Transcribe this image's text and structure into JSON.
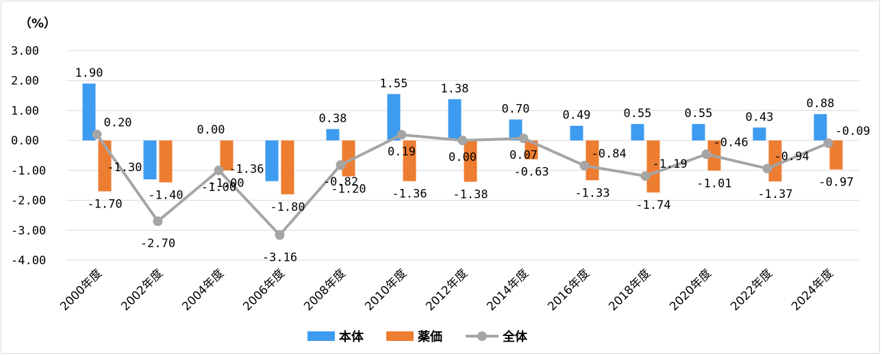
{
  "chart_data": {
    "type": "bar",
    "unit_label": "（%）",
    "categories": [
      "2000年度",
      "2002年度",
      "2004年度",
      "2006年度",
      "2008年度",
      "2010年度",
      "2012年度",
      "2014年度",
      "2016年度",
      "2018年度",
      "2020年度",
      "2022年度",
      "2024年度"
    ],
    "ylim": [
      -4,
      3
    ],
    "yticks": [
      "3.00",
      "2.00",
      "1.00",
      "0.00",
      "-1.00",
      "-2.00",
      "-3.00",
      "-4.00"
    ],
    "grid": true,
    "legend_position": "bottom",
    "series": [
      {
        "name": "本体",
        "kind": "bar",
        "color": "#3d9bf0",
        "values": [
          1.9,
          -1.3,
          0.0,
          -1.36,
          0.38,
          1.55,
          1.38,
          0.7,
          0.49,
          0.55,
          0.55,
          0.43,
          0.88
        ],
        "labels": [
          "1.90",
          "-1.30",
          "0.00",
          "-1.36",
          "0.38",
          "1.55",
          "1.38",
          "0.70",
          "0.49",
          "0.55",
          "0.55",
          "0.43",
          "0.88"
        ]
      },
      {
        "name": "薬価",
        "kind": "bar",
        "color": "#ed7d31",
        "values": [
          -1.7,
          -1.4,
          -1.0,
          -1.8,
          -1.2,
          -1.36,
          -1.38,
          -0.63,
          -1.33,
          -1.74,
          -1.01,
          -1.37,
          -0.97
        ],
        "labels": [
          "-1.70",
          "-1.40",
          "-1.00",
          "-1.80",
          "-1.20",
          "-1.36",
          "-1.38",
          "-0.63",
          "-1.33",
          "-1.74",
          "-1.01",
          "-1.37",
          "-0.97"
        ]
      },
      {
        "name": "全体",
        "kind": "line",
        "color": "#a5a5a5",
        "values": [
          0.2,
          -2.7,
          -1.0,
          -3.16,
          -0.82,
          0.19,
          0.0,
          0.07,
          -0.84,
          -1.19,
          -0.46,
          -0.94,
          -0.09
        ],
        "labels": [
          "0.20",
          "-2.70",
          "-1.00",
          "-3.16",
          "-0.82",
          "0.19",
          "0.00",
          "0.07",
          "-0.84",
          "-1.19",
          "-0.46",
          "-0.94",
          "-0.09"
        ]
      }
    ]
  }
}
